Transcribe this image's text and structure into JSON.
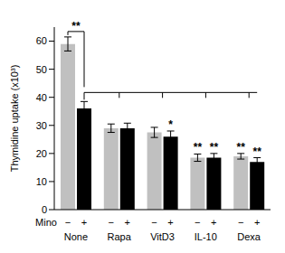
{
  "chart_data": {
    "type": "bar",
    "y_label": "Thymidine uptake (x10³)",
    "categories": [
      "None",
      "Rapa",
      "VitD3",
      "IL-10",
      "Dexa"
    ],
    "series_label": "Mino",
    "series": [
      {
        "name": "−",
        "color": "#c0c0c0",
        "values": [
          59,
          29,
          27.5,
          18.5,
          19
        ],
        "errors": [
          2.5,
          1.5,
          1.8,
          1.3,
          1
        ],
        "stars": [
          null,
          null,
          null,
          "**",
          "**"
        ]
      },
      {
        "name": "+",
        "color": "#000000",
        "values": [
          36,
          29,
          26,
          18.5,
          17
        ],
        "errors": [
          2.5,
          1.8,
          2,
          1.5,
          1.5
        ],
        "stars": [
          null,
          null,
          "*",
          "**",
          "**"
        ]
      }
    ],
    "bracket_label": "**",
    "ylim": [
      0,
      65
    ],
    "yticks": [
      0,
      10,
      20,
      30,
      40,
      50,
      60
    ],
    "grid": false
  }
}
